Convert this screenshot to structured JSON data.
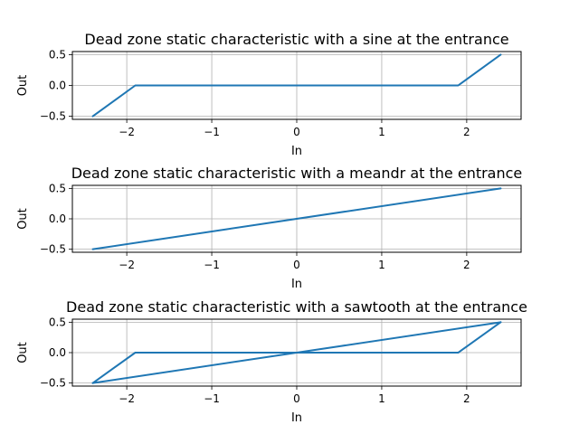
{
  "chart_data": [
    {
      "type": "line",
      "title": "Dead zone static characteristic with a sine at the entrance",
      "xlabel": "In",
      "ylabel": "Out",
      "xlim": [
        -2.64,
        2.64
      ],
      "ylim": [
        -0.55,
        0.55
      ],
      "xticks": [
        -2,
        -1,
        0,
        1,
        2
      ],
      "xtick_labels": [
        "−2",
        "−1",
        "0",
        "1",
        "2"
      ],
      "yticks": [
        0.5,
        0.0,
        -0.5
      ],
      "ytick_labels": [
        "0.5",
        "0.0",
        "−0.5"
      ],
      "grid": true,
      "color": "#1f77b4",
      "series": [
        {
          "x": [
            -2.4,
            -1.9,
            1.9,
            2.4
          ],
          "y": [
            -0.5,
            0.0,
            0.0,
            0.5
          ]
        }
      ]
    },
    {
      "type": "line",
      "title": "Dead zone static characteristic with a meandr at the entrance",
      "xlabel": "In",
      "ylabel": "Out",
      "xlim": [
        -2.64,
        2.64
      ],
      "ylim": [
        -0.55,
        0.55
      ],
      "xticks": [
        -2,
        -1,
        0,
        1,
        2
      ],
      "xtick_labels": [
        "−2",
        "−1",
        "0",
        "1",
        "2"
      ],
      "yticks": [
        0.5,
        0.0,
        -0.5
      ],
      "ytick_labels": [
        "0.5",
        "0.0",
        "−0.5"
      ],
      "grid": true,
      "color": "#1f77b4",
      "series": [
        {
          "x": [
            -2.4,
            2.4
          ],
          "y": [
            -0.5,
            0.5
          ]
        }
      ]
    },
    {
      "type": "line",
      "title": "Dead zone static characteristic with a sawtooth at the entrance",
      "xlabel": "In",
      "ylabel": "Out",
      "xlim": [
        -2.64,
        2.64
      ],
      "ylim": [
        -0.55,
        0.55
      ],
      "xticks": [
        -2,
        -1,
        0,
        1,
        2
      ],
      "xtick_labels": [
        "−2",
        "−1",
        "0",
        "1",
        "2"
      ],
      "yticks": [
        0.5,
        0.0,
        -0.5
      ],
      "ytick_labels": [
        "0.5",
        "0.0",
        "−0.5"
      ],
      "grid": true,
      "color": "#1f77b4",
      "series": [
        {
          "x": [
            -2.4,
            -1.9,
            1.9,
            2.4
          ],
          "y": [
            -0.5,
            0.0,
            0.0,
            0.5
          ]
        },
        {
          "x": [
            -2.4,
            2.4
          ],
          "y": [
            -0.5,
            0.5
          ]
        }
      ]
    }
  ]
}
